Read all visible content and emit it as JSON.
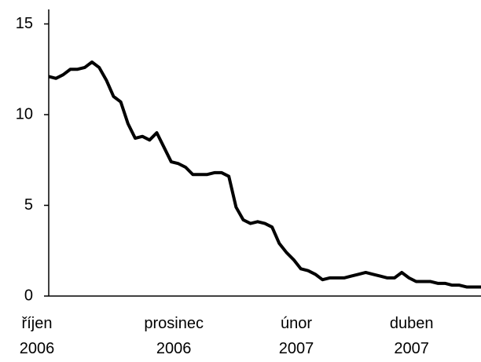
{
  "chart_data": {
    "type": "line",
    "categories": [
      "říjen 2006",
      null,
      null,
      null,
      null,
      null,
      null,
      null,
      null,
      null,
      null,
      null,
      null,
      null,
      null,
      null,
      null,
      null,
      null,
      "prosinec 2006",
      null,
      null,
      null,
      null,
      null,
      null,
      null,
      null,
      null,
      null,
      null,
      null,
      null,
      null,
      null,
      null,
      "únor 2007",
      null,
      null,
      null,
      null,
      null,
      null,
      null,
      null,
      null,
      null,
      null,
      null,
      null,
      null,
      null,
      "duben 2007",
      null,
      null,
      null,
      null,
      null,
      null,
      null,
      null
    ],
    "series": [
      {
        "color": "#000000",
        "values": [
          12.1,
          12.0,
          12.2,
          12.5,
          12.5,
          12.6,
          12.9,
          12.6,
          11.9,
          11.0,
          10.7,
          9.5,
          8.7,
          8.8,
          8.6,
          9.0,
          8.2,
          7.4,
          7.3,
          7.1,
          6.7,
          6.7,
          6.7,
          6.8,
          6.8,
          6.6,
          4.9,
          4.2,
          4.0,
          4.1,
          4.0,
          3.8,
          2.9,
          2.4,
          2.0,
          1.5,
          1.4,
          1.2,
          0.9,
          1.0,
          1.0,
          1.0,
          1.1,
          1.2,
          1.3,
          1.2,
          1.1,
          1.0,
          1.0,
          1.3,
          1.0,
          0.8,
          0.8,
          0.8,
          0.7,
          0.7,
          0.6,
          0.6,
          0.5,
          0.5,
          0.5
        ]
      }
    ],
    "ylim": [
      0,
      15.8
    ],
    "yticks": [
      0,
      5,
      10,
      15
    ],
    "grid": false
  }
}
